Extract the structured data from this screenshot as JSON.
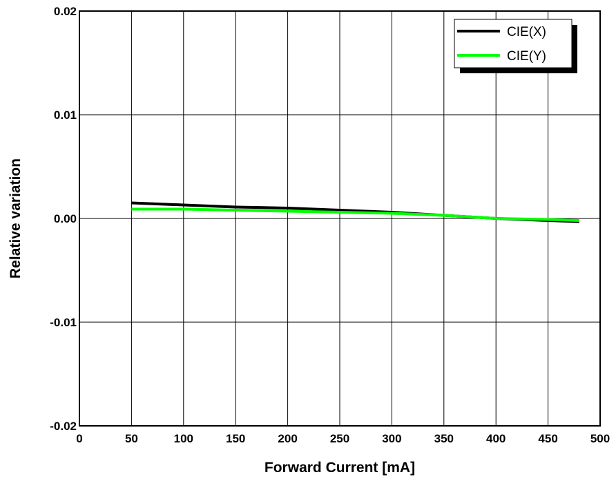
{
  "chart_data": {
    "type": "line",
    "xlabel": "Forward Current [mA]",
    "ylabel": "Relative variation",
    "xlim": [
      0,
      500
    ],
    "ylim": [
      -0.02,
      0.02
    ],
    "x_ticks": [
      0,
      50,
      100,
      150,
      200,
      250,
      300,
      350,
      400,
      450,
      500
    ],
    "x_tick_labels": [
      "0",
      "50",
      "100",
      "150",
      "200",
      "250",
      "300",
      "350",
      "400",
      "450",
      "500"
    ],
    "y_ticks": [
      -0.02,
      -0.01,
      0.0,
      0.01,
      0.02
    ],
    "y_tick_labels": [
      "-0.02",
      "-0.01",
      "0.00",
      "0.01",
      "0.02"
    ],
    "grid": true,
    "legend_position": "top-right",
    "series": [
      {
        "name": "CIE(X)",
        "color": "#000000",
        "x": [
          50,
          100,
          150,
          200,
          250,
          300,
          350,
          400,
          450,
          480
        ],
        "y": [
          0.0015,
          0.0013,
          0.0011,
          0.001,
          0.0008,
          0.0006,
          0.0003,
          0.0,
          -0.0002,
          -0.0003
        ]
      },
      {
        "name": "CIE(Y)",
        "color": "#00ff00",
        "x": [
          50,
          100,
          150,
          200,
          250,
          300,
          350,
          400,
          450,
          480
        ],
        "y": [
          0.0009,
          0.0009,
          0.0008,
          0.0007,
          0.0006,
          0.0005,
          0.0003,
          0.0,
          -0.0001,
          -0.0002
        ]
      }
    ]
  }
}
